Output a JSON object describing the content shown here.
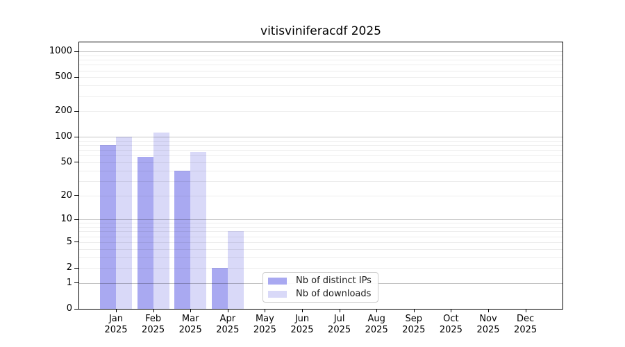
{
  "chart_data": {
    "type": "bar",
    "title": "vitisviniferacdf 2025",
    "x_axis": {
      "months": [
        "Jan",
        "Feb",
        "Mar",
        "Apr",
        "May",
        "Jun",
        "Jul",
        "Aug",
        "Sep",
        "Oct",
        "Nov",
        "Dec"
      ],
      "year": "2025"
    },
    "series": [
      {
        "name": "Nb of distinct IPs",
        "color": "#a9a9f1",
        "values": [
          80,
          58,
          40,
          2,
          null,
          null,
          null,
          null,
          null,
          null,
          null,
          null
        ]
      },
      {
        "name": "Nb of downloads",
        "color": "#d9d9f8",
        "values": [
          100,
          112,
          67,
          7,
          null,
          null,
          null,
          null,
          null,
          null,
          null,
          null
        ]
      }
    ],
    "y_axis": {
      "scale": "symlog (positions follow log10(value+1))",
      "tick_values": [
        0,
        1,
        2,
        5,
        10,
        20,
        50,
        100,
        200,
        500,
        1000
      ],
      "major_gridlines": [
        1,
        10,
        100,
        1000
      ],
      "minor_gridlines": [
        2,
        3,
        4,
        5,
        6,
        7,
        8,
        9,
        20,
        30,
        40,
        50,
        60,
        70,
        80,
        90,
        200,
        300,
        400,
        500,
        600,
        700,
        800,
        900
      ],
      "ylim": [
        0,
        1280
      ],
      "grid": true
    },
    "legend": {
      "position": "lower center"
    }
  }
}
